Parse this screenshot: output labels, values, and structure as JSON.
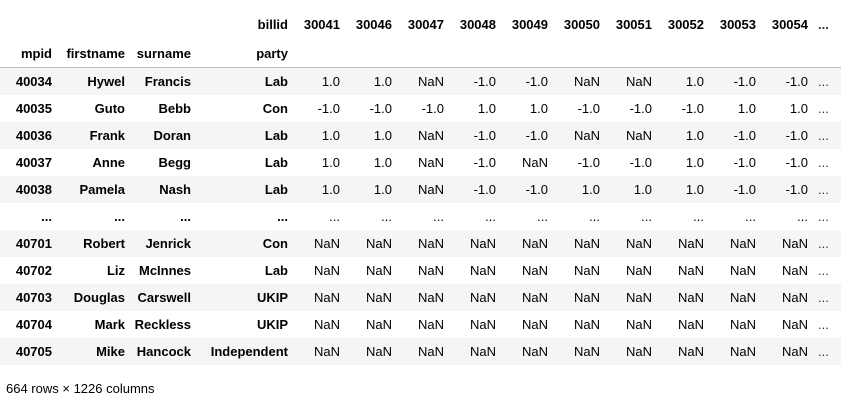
{
  "dataframe": {
    "column_level_name": "billid",
    "index_level_names": [
      "mpid",
      "firstname",
      "surname",
      "party"
    ],
    "columns": [
      "30041",
      "30046",
      "30047",
      "30048",
      "30049",
      "30050",
      "30051",
      "30052",
      "30053",
      "30054",
      "..."
    ],
    "rows": [
      {
        "mpid": "40034",
        "firstname": "Hywel",
        "surname": "Francis",
        "party": "Lab",
        "values": [
          "1.0",
          "1.0",
          "NaN",
          "-1.0",
          "-1.0",
          "NaN",
          "NaN",
          "1.0",
          "-1.0",
          "-1.0",
          "..."
        ]
      },
      {
        "mpid": "40035",
        "firstname": "Guto",
        "surname": "Bebb",
        "party": "Con",
        "values": [
          "-1.0",
          "-1.0",
          "-1.0",
          "1.0",
          "1.0",
          "-1.0",
          "-1.0",
          "-1.0",
          "1.0",
          "1.0",
          "..."
        ]
      },
      {
        "mpid": "40036",
        "firstname": "Frank",
        "surname": "Doran",
        "party": "Lab",
        "values": [
          "1.0",
          "1.0",
          "NaN",
          "-1.0",
          "-1.0",
          "NaN",
          "NaN",
          "1.0",
          "-1.0",
          "-1.0",
          "..."
        ]
      },
      {
        "mpid": "40037",
        "firstname": "Anne",
        "surname": "Begg",
        "party": "Lab",
        "values": [
          "1.0",
          "1.0",
          "NaN",
          "-1.0",
          "NaN",
          "-1.0",
          "-1.0",
          "1.0",
          "-1.0",
          "-1.0",
          "..."
        ]
      },
      {
        "mpid": "40038",
        "firstname": "Pamela",
        "surname": "Nash",
        "party": "Lab",
        "values": [
          "1.0",
          "1.0",
          "NaN",
          "-1.0",
          "-1.0",
          "1.0",
          "1.0",
          "1.0",
          "-1.0",
          "-1.0",
          "..."
        ]
      },
      {
        "mpid": "...",
        "firstname": "...",
        "surname": "...",
        "party": "...",
        "values": [
          "...",
          "...",
          "...",
          "...",
          "...",
          "...",
          "...",
          "...",
          "...",
          "...",
          "..."
        ]
      },
      {
        "mpid": "40701",
        "firstname": "Robert",
        "surname": "Jenrick",
        "party": "Con",
        "values": [
          "NaN",
          "NaN",
          "NaN",
          "NaN",
          "NaN",
          "NaN",
          "NaN",
          "NaN",
          "NaN",
          "NaN",
          "..."
        ]
      },
      {
        "mpid": "40702",
        "firstname": "Liz",
        "surname": "McInnes",
        "party": "Lab",
        "values": [
          "NaN",
          "NaN",
          "NaN",
          "NaN",
          "NaN",
          "NaN",
          "NaN",
          "NaN",
          "NaN",
          "NaN",
          "..."
        ]
      },
      {
        "mpid": "40703",
        "firstname": "Douglas",
        "surname": "Carswell",
        "party": "UKIP",
        "values": [
          "NaN",
          "NaN",
          "NaN",
          "NaN",
          "NaN",
          "NaN",
          "NaN",
          "NaN",
          "NaN",
          "NaN",
          "..."
        ]
      },
      {
        "mpid": "40704",
        "firstname": "Mark",
        "surname": "Reckless",
        "party": "UKIP",
        "values": [
          "NaN",
          "NaN",
          "NaN",
          "NaN",
          "NaN",
          "NaN",
          "NaN",
          "NaN",
          "NaN",
          "NaN",
          "..."
        ]
      },
      {
        "mpid": "40705",
        "firstname": "Mike",
        "surname": "Hancock",
        "party": "Independent",
        "values": [
          "NaN",
          "NaN",
          "NaN",
          "NaN",
          "NaN",
          "NaN",
          "NaN",
          "NaN",
          "NaN",
          "NaN",
          "..."
        ]
      }
    ],
    "shape_text": "664 rows × 1226 columns"
  }
}
